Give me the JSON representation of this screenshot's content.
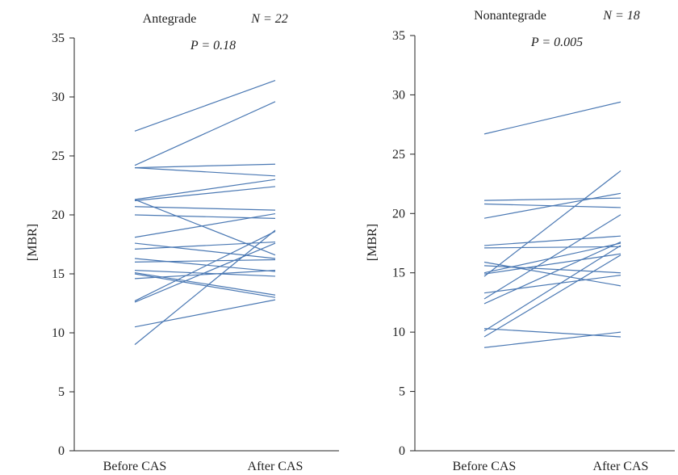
{
  "colors": {
    "line": "#4a78b3",
    "axis": "#222222"
  },
  "chart_data": [
    {
      "type": "line",
      "group": "Antegrade",
      "n_text": "N = 22",
      "p_text": "P = 0.18",
      "ylabel": "[MBR]",
      "categories": [
        "Before CAS",
        "After CAS"
      ],
      "ylim": [
        0,
        35
      ],
      "yticks": [
        0,
        5,
        10,
        15,
        20,
        25,
        30,
        35
      ],
      "series": [
        {
          "values": [
            27.1,
            31.4
          ]
        },
        {
          "values": [
            24.2,
            29.6
          ]
        },
        {
          "values": [
            24.0,
            24.3
          ]
        },
        {
          "values": [
            24.0,
            23.3
          ]
        },
        {
          "values": [
            21.3,
            23.0
          ]
        },
        {
          "values": [
            21.2,
            22.4
          ]
        },
        {
          "values": [
            20.7,
            20.4
          ]
        },
        {
          "values": [
            21.3,
            16.6
          ]
        },
        {
          "values": [
            20.0,
            19.7
          ]
        },
        {
          "values": [
            18.1,
            20.1
          ]
        },
        {
          "values": [
            17.6,
            16.3
          ]
        },
        {
          "values": [
            17.1,
            17.7
          ]
        },
        {
          "values": [
            16.3,
            15.2
          ]
        },
        {
          "values": [
            16.0,
            16.2
          ]
        },
        {
          "values": [
            15.3,
            14.8
          ]
        },
        {
          "values": [
            15.1,
            13.2
          ]
        },
        {
          "values": [
            15.0,
            13.0
          ]
        },
        {
          "values": [
            14.6,
            15.3
          ]
        },
        {
          "values": [
            12.7,
            18.6
          ]
        },
        {
          "values": [
            12.6,
            17.6
          ]
        },
        {
          "values": [
            10.5,
            12.8
          ]
        },
        {
          "values": [
            9.0,
            18.7
          ]
        }
      ]
    },
    {
      "type": "line",
      "group": "Nonantegrade",
      "n_text": "N = 18",
      "p_text": "P = 0.005",
      "ylabel": "[MBR]",
      "categories": [
        "Before CAS",
        "After CAS"
      ],
      "ylim": [
        0,
        35
      ],
      "yticks": [
        0,
        5,
        10,
        15,
        20,
        25,
        30,
        35
      ],
      "series": [
        {
          "values": [
            26.7,
            29.4
          ]
        },
        {
          "values": [
            21.1,
            21.3
          ]
        },
        {
          "values": [
            20.8,
            20.5
          ]
        },
        {
          "values": [
            19.6,
            21.7
          ]
        },
        {
          "values": [
            17.3,
            18.1
          ]
        },
        {
          "values": [
            17.1,
            17.2
          ]
        },
        {
          "values": [
            15.9,
            13.9
          ]
        },
        {
          "values": [
            15.6,
            15.0
          ]
        },
        {
          "values": [
            15.0,
            17.5
          ]
        },
        {
          "values": [
            14.9,
            16.6
          ]
        },
        {
          "values": [
            14.7,
            23.6
          ]
        },
        {
          "values": [
            13.3,
            14.8
          ]
        },
        {
          "values": [
            12.8,
            19.9
          ]
        },
        {
          "values": [
            12.4,
            17.6
          ]
        },
        {
          "values": [
            10.3,
            9.6
          ]
        },
        {
          "values": [
            10.1,
            17.3
          ]
        },
        {
          "values": [
            9.6,
            16.5
          ]
        },
        {
          "values": [
            8.7,
            10.0
          ]
        }
      ]
    }
  ]
}
